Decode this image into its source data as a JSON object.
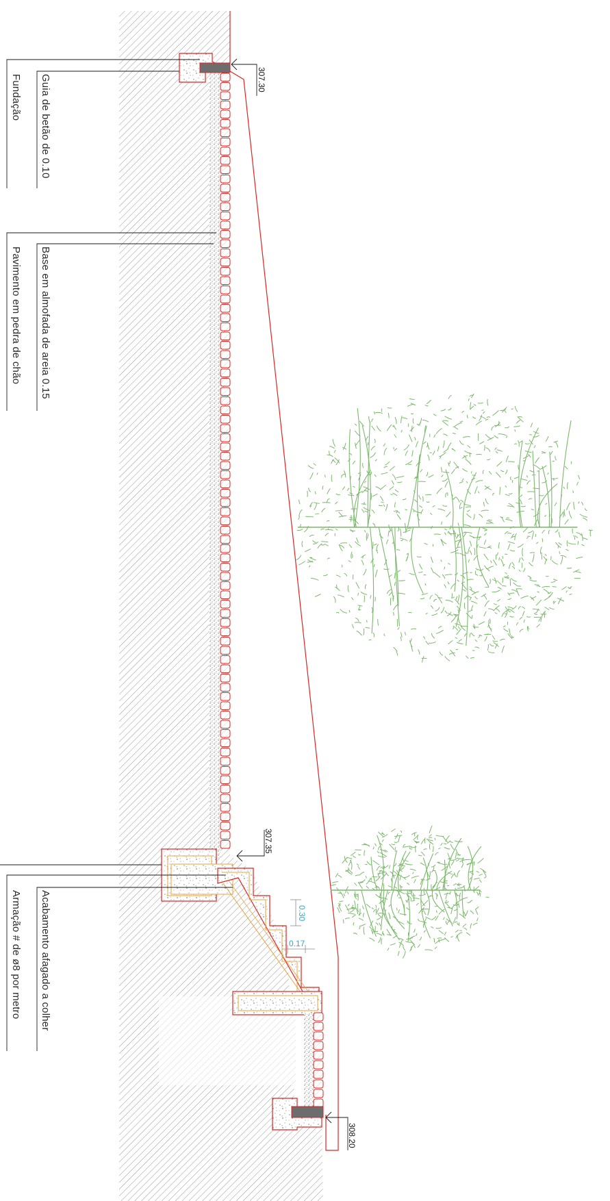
{
  "labels": {
    "fundacao": "Fundação",
    "guia": "Guia de betão de 0.10",
    "pavimento": "Pavimento em pedra de chão",
    "base": "Base em almofada de areia 0.15",
    "armacao": "Armação  # de ø8 por metro",
    "acabamento": "Acabamento afagado a colher"
  },
  "levels": {
    "top": "307.30",
    "middle": "307.35",
    "bottom": "308.20"
  },
  "dimensions": {
    "riser": "0.30",
    "tread": "0.17"
  },
  "colors": {
    "line_red": "#e0231f",
    "tree_green": "#7ab86a",
    "dimension_blue": "#1cb0e0",
    "concrete_orange": "#e9a13b",
    "guide_gray": "#6d6d6d",
    "hatch": "#8a8a8a"
  }
}
